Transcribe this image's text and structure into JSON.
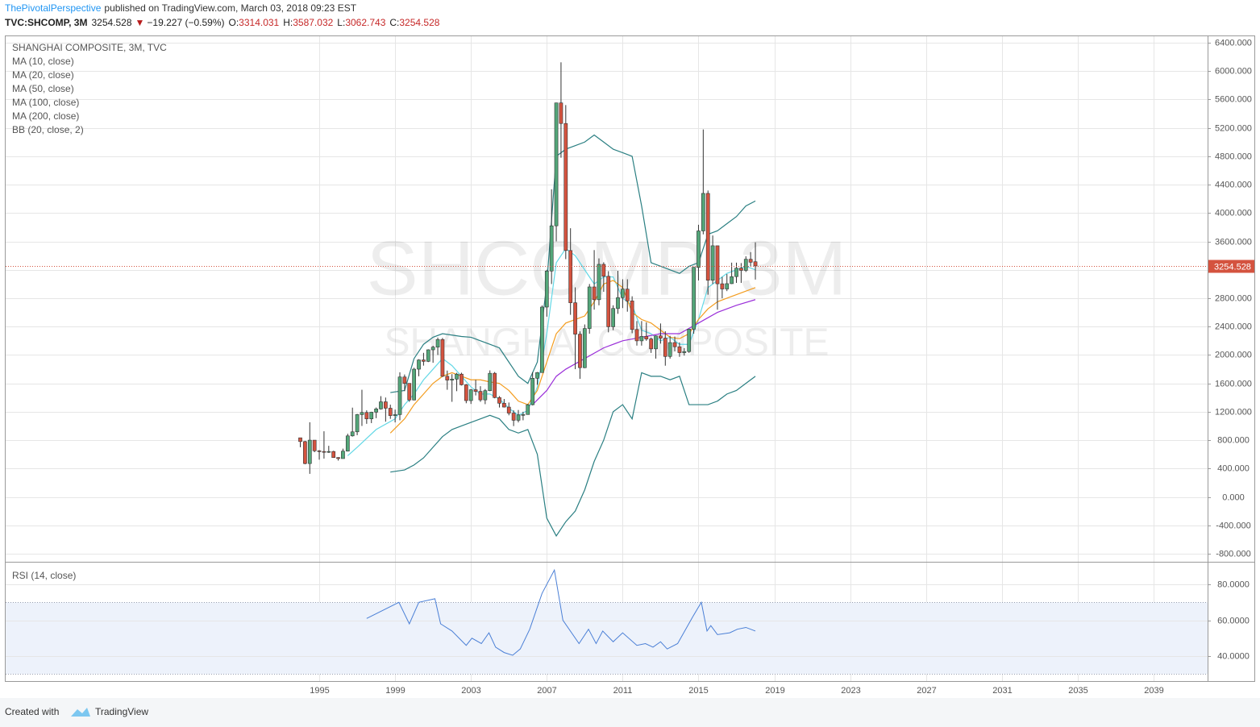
{
  "header": {
    "author": "ThePivotalPerspective",
    "published": "published on TradingView.com, March 03, 2018 09:23 EST",
    "symbol": "TVC:SHCOMP, 3M",
    "last": "3254.528",
    "arrow": "▼",
    "change": "−19.227 (−0.59%)",
    "ohlc": [
      {
        "label": "O:",
        "value": "3314.031"
      },
      {
        "label": "H:",
        "value": "3587.032"
      },
      {
        "label": "L:",
        "value": "3062.743"
      },
      {
        "label": "C:",
        "value": "3254.528"
      }
    ]
  },
  "footer": {
    "created": "Created with",
    "brand": "TradingView"
  },
  "chart_data": [
    {
      "type": "candlestick",
      "title": "SHANGHAI COMPOSITE, 3M, TVC",
      "watermark": "SHCOMP, 3M",
      "watermark_subtitle": "SHANGHAI COMPOSITE",
      "x": [
        1994,
        1994.25,
        1994.5,
        1994.75,
        1995,
        1995.25,
        1995.5,
        1995.75,
        1996,
        1996.25,
        1996.5,
        1996.75,
        1997,
        1997.25,
        1997.5,
        1997.75,
        1998,
        1998.25,
        1998.5,
        1998.75,
        1999,
        1999.25,
        1999.5,
        1999.75,
        2000,
        2000.25,
        2000.5,
        2000.75,
        2001,
        2001.25,
        2001.5,
        2001.75,
        2002,
        2002.25,
        2002.5,
        2002.75,
        2003,
        2003.25,
        2003.5,
        2003.75,
        2004,
        2004.25,
        2004.5,
        2004.75,
        2005,
        2005.25,
        2005.5,
        2005.75,
        2006,
        2006.25,
        2006.5,
        2006.75,
        2007,
        2007.25,
        2007.5,
        2007.75,
        2008,
        2008.25,
        2008.5,
        2008.75,
        2009,
        2009.25,
        2009.5,
        2009.75,
        2010,
        2010.25,
        2010.5,
        2010.75,
        2011,
        2011.25,
        2011.5,
        2011.75,
        2012,
        2012.25,
        2012.5,
        2012.75,
        2013,
        2013.25,
        2013.5,
        2013.75,
        2014,
        2014.25,
        2014.5,
        2014.75,
        2015,
        2015.25,
        2015.5,
        2015.75,
        2016,
        2016.25,
        2016.5,
        2016.75,
        2017,
        2017.25,
        2017.5,
        2017.75,
        2018
      ],
      "open": [
        833,
        780,
        470,
        800,
        650,
        640,
        630,
        640,
        555,
        540,
        645,
        860,
        917,
        1160,
        1190,
        1100,
        1194,
        1240,
        1340,
        1250,
        1146,
        1160,
        1690,
        1600,
        1366,
        1800,
        1930,
        1910,
        2073,
        2110,
        2218,
        1700,
        1646,
        1660,
        1730,
        1580,
        1357,
        1510,
        1487,
        1367,
        1497,
        1742,
        1400,
        1320,
        1266,
        1181,
        1080,
        1155,
        1161,
        1299,
        1672,
        1752,
        2675,
        3183,
        3820,
        5552,
        5262,
        3472,
        2736,
        2293,
        1821,
        2373,
        2959,
        2779,
        3277,
        3109,
        2398,
        2655,
        2808,
        2928,
        2762,
        2359,
        2199,
        2262,
        2225,
        2086,
        2269,
        2237,
        1979,
        2175,
        2116,
        2033,
        2048,
        2364,
        3235,
        3748,
        4277,
        3053,
        3539,
        3003,
        2930,
        3005,
        3104,
        3223,
        3192,
        3349,
        3314.031
      ],
      "high": [
        835,
        790,
        1052,
        800,
        660,
        925,
        720,
        650,
        560,
        680,
        890,
        1258,
        1170,
        1510,
        1220,
        1200,
        1260,
        1420,
        1400,
        1300,
        1230,
        1756,
        1725,
        1600,
        1820,
        1940,
        2030,
        2080,
        2130,
        2245,
        2240,
        1780,
        1730,
        1748,
        1750,
        1590,
        1520,
        1650,
        1560,
        1520,
        1783,
        1760,
        1420,
        1380,
        1330,
        1220,
        1225,
        1200,
        1310,
        1757,
        1760,
        2698,
        3200,
        4335,
        5555,
        6124,
        5522,
        3786,
        2953,
        2333,
        2430,
        3000,
        3478,
        3361,
        3306,
        3181,
        2700,
        3186,
        3067,
        3067,
        2827,
        2478,
        2478,
        2460,
        2243,
        2276,
        2444,
        2334,
        2270,
        2260,
        2177,
        2097,
        2367,
        3239,
        3835,
        5178,
        4317,
        3684,
        3539,
        3100,
        3140,
        3301,
        3301,
        3295,
        3391,
        3450,
        3587.032
      ],
      "low": [
        700,
        460,
        325,
        630,
        525,
        540,
        620,
        550,
        512,
        540,
        640,
        850,
        870,
        1000,
        1030,
        1040,
        1110,
        1230,
        1060,
        1100,
        1050,
        1080,
        1490,
        1340,
        1360,
        1700,
        1850,
        1900,
        1890,
        2000,
        1690,
        1510,
        1340,
        1490,
        1570,
        1320,
        1310,
        1430,
        1340,
        1307,
        1490,
        1390,
        1260,
        1260,
        1150,
        998,
        1050,
        1080,
        1160,
        1290,
        1580,
        1750,
        2540,
        3000,
        3600,
        4780,
        3350,
        2566,
        1800,
        1664,
        1814,
        2300,
        2639,
        2700,
        2890,
        2319,
        2350,
        2580,
        2661,
        2610,
        2307,
        2132,
        2132,
        2200,
        2029,
        1949,
        2160,
        1849,
        1949,
        2050,
        1974,
        1991,
        2030,
        2300,
        3050,
        3700,
        2850,
        3000,
        2638,
        2800,
        2900,
        3000,
        3016,
        3016,
        3170,
        3250,
        3062.743
      ],
      "close": [
        780,
        470,
        800,
        650,
        640,
        630,
        640,
        555,
        540,
        645,
        860,
        917,
        1160,
        1190,
        1100,
        1194,
        1240,
        1340,
        1250,
        1146,
        1160,
        1690,
        1600,
        1366,
        1800,
        1930,
        1910,
        2073,
        2110,
        2218,
        1700,
        1646,
        1660,
        1730,
        1580,
        1357,
        1510,
        1487,
        1367,
        1497,
        1742,
        1400,
        1320,
        1266,
        1181,
        1080,
        1155,
        1161,
        1299,
        1672,
        1752,
        2675,
        3183,
        3820,
        5552,
        5262,
        3472,
        2736,
        2293,
        1821,
        2373,
        2959,
        2779,
        3277,
        3109,
        2398,
        2655,
        2808,
        2928,
        2762,
        2359,
        2199,
        2262,
        2225,
        2086,
        2269,
        2237,
        1979,
        2175,
        2116,
        2033,
        2048,
        2364,
        3235,
        3748,
        4277,
        3053,
        3539,
        3003,
        2930,
        3005,
        3104,
        3223,
        3192,
        3349,
        3307,
        3254.528
      ],
      "up_color": "#53a679",
      "down_color": "#d4533f",
      "last_price_color": "#d4533f",
      "series": [
        {
          "name": "MA (10, close)",
          "color": "#63d8e6",
          "x": [
            1996.5,
            1997,
            1998,
            1999,
            1999.5,
            2000,
            2000.5,
            2001,
            2001.5,
            2002,
            2002.5,
            2003,
            2003.5,
            2004,
            2004.5,
            2005,
            2005.5,
            2006,
            2006.5,
            2007,
            2007.5,
            2008,
            2008.5,
            2009,
            2009.5,
            2010,
            2010.5,
            2011,
            2011.5,
            2012,
            2012.5,
            2013,
            2013.5,
            2014,
            2014.5,
            2015,
            2015.5,
            2016,
            2016.5,
            2017,
            2017.5,
            2018
          ],
          "values": [
            580,
            700,
            950,
            1100,
            1300,
            1450,
            1650,
            1800,
            1950,
            1850,
            1700,
            1550,
            1450,
            1450,
            1380,
            1250,
            1150,
            1220,
            1550,
            2300,
            3300,
            3500,
            3400,
            3200,
            3000,
            3100,
            3100,
            2800,
            2700,
            2350,
            2300,
            2200,
            2250,
            2150,
            2150,
            2500,
            2950,
            3050,
            3150,
            3200,
            3250,
            3200
          ]
        },
        {
          "name": "MA (20, close)",
          "color": "#f39c1e",
          "x": [
            1998.75,
            1999.5,
            2000,
            2000.5,
            2001,
            2001.5,
            2002,
            2002.5,
            2003,
            2003.5,
            2004,
            2004.5,
            2005,
            2005.5,
            2006,
            2006.5,
            2007,
            2007.5,
            2008,
            2008.5,
            2009,
            2009.5,
            2010,
            2010.5,
            2011,
            2011.5,
            2012,
            2012.5,
            2013,
            2013.5,
            2014,
            2014.5,
            2015,
            2015.5,
            2016,
            2016.5,
            2017,
            2017.5,
            2018
          ],
          "values": [
            900,
            1100,
            1300,
            1450,
            1600,
            1700,
            1750,
            1700,
            1650,
            1650,
            1620,
            1600,
            1500,
            1350,
            1300,
            1500,
            1900,
            2300,
            2450,
            2500,
            2550,
            2750,
            3000,
            3050,
            2950,
            2600,
            2500,
            2450,
            2350,
            2250,
            2230,
            2300,
            2500,
            2650,
            2750,
            2800,
            2850,
            2900,
            2950
          ]
        },
        {
          "name": "MA (50, close)",
          "color": "#9b30d9",
          "x": [
            2006.25,
            2007,
            2007.5,
            2008,
            2009,
            2010,
            2011,
            2012,
            2013,
            2014,
            2015,
            2016,
            2017,
            2018
          ],
          "values": [
            1300,
            1500,
            1700,
            1800,
            1950,
            2100,
            2200,
            2250,
            2300,
            2300,
            2450,
            2600,
            2700,
            2780
          ]
        },
        {
          "name": "MA (100, close)",
          "x": [],
          "values": []
        },
        {
          "name": "MA (200, close)",
          "x": [],
          "values": []
        },
        {
          "name": "BB (20, close, 2)",
          "color": "#2a7f82",
          "x": [
            1998.75,
            1999.5,
            2000,
            2000.5,
            2001,
            2001.5,
            2002,
            2002.5,
            2003,
            2003.5,
            2004,
            2004.5,
            2005,
            2005.5,
            2006,
            2006.5,
            2007,
            2007.5,
            2008,
            2008.5,
            2009,
            2009.5,
            2010,
            2010.5,
            2011,
            2011.5,
            2012,
            2012.5,
            2013,
            2013.5,
            2014,
            2014.5,
            2015,
            2015.5,
            2016,
            2016.5,
            2017,
            2017.5,
            2018
          ],
          "upper": [
            1470,
            1500,
            1950,
            2150,
            2250,
            2300,
            2280,
            2260,
            2250,
            2200,
            2150,
            2100,
            1900,
            1700,
            1600,
            1900,
            3000,
            4800,
            4900,
            4950,
            5000,
            5100,
            5000,
            4900,
            4850,
            4800,
            4100,
            3300,
            3250,
            3200,
            3150,
            3250,
            3300,
            3700,
            3750,
            3850,
            3950,
            4100,
            4170
          ],
          "lower": [
            350,
            380,
            450,
            550,
            700,
            850,
            950,
            1000,
            1050,
            1100,
            1150,
            1100,
            950,
            900,
            950,
            600,
            -300,
            -550,
            -350,
            -200,
            100,
            500,
            800,
            1200,
            1300,
            1100,
            1750,
            1700,
            1700,
            1650,
            1700,
            1300,
            1300,
            1300,
            1350,
            1450,
            1500,
            1600,
            1700
          ]
        }
      ],
      "xlim": [
        1978.46,
        2041.85
      ],
      "xticks": [
        1995,
        1999,
        2003,
        2007,
        2011,
        2015,
        2019,
        2023,
        2027,
        2031,
        2035,
        2039
      ],
      "ylim": [
        -914,
        6491
      ],
      "yticks": [
        {
          "value": -800,
          "label": "-800.000"
        },
        {
          "value": -400,
          "label": "-400.000"
        },
        {
          "value": 0,
          "label": "0.000"
        },
        {
          "value": 400,
          "label": "400.000"
        },
        {
          "value": 800,
          "label": "800.000"
        },
        {
          "value": 1200,
          "label": "1200.000"
        },
        {
          "value": 1600,
          "label": "1600.000"
        },
        {
          "value": 2000,
          "label": "2000.000"
        },
        {
          "value": 2400,
          "label": "2400.000"
        },
        {
          "value": 2800,
          "label": "2800.000"
        },
        {
          "value": 3200,
          "label": "3200.000"
        },
        {
          "value": 3600,
          "label": "3600.000"
        },
        {
          "value": 4000,
          "label": "4000.000"
        },
        {
          "value": 4400,
          "label": "4400.000"
        },
        {
          "value": 4800,
          "label": "4800.000"
        },
        {
          "value": 5200,
          "label": "5200.000"
        },
        {
          "value": 5600,
          "label": "5600.000"
        },
        {
          "value": 6000,
          "label": "6000.000"
        },
        {
          "value": 6400,
          "label": "6400.000"
        }
      ],
      "grid": true
    },
    {
      "type": "line",
      "title": "RSI (14, close)",
      "color": "#4a7fd6",
      "band": [
        30,
        70
      ],
      "band_color": "#edf2fb",
      "x": [
        1997.5,
        1999.2,
        1999.75,
        2000.25,
        2001.1,
        2001.4,
        2002,
        2002.75,
        2003.05,
        2003.55,
        2003.95,
        2004.3,
        2004.75,
        2005.2,
        2005.6,
        2006.1,
        2006.75,
        2007.4,
        2007.85,
        2008.7,
        2009.2,
        2009.6,
        2009.95,
        2010.5,
        2011,
        2011.75,
        2012.2,
        2012.6,
        2013,
        2013.35,
        2013.9,
        2014.7,
        2015.15,
        2015.45,
        2015.65,
        2016,
        2016.65,
        2017.05,
        2017.5,
        2018
      ],
      "values": [
        61,
        70,
        58,
        70,
        72,
        58,
        54,
        46,
        50,
        47,
        53,
        45,
        42,
        40.5,
        44,
        55,
        75,
        88,
        60,
        47,
        55,
        47,
        54,
        48,
        53,
        46,
        47,
        45,
        48,
        44,
        47,
        62,
        70,
        54,
        57,
        52,
        53,
        55,
        56,
        54
      ],
      "xlim": [
        1978.46,
        2041.85
      ],
      "ylim": [
        26.1,
        92.6
      ],
      "yticks": [
        {
          "value": 40,
          "label": "40.0000"
        },
        {
          "value": 60,
          "label": "60.0000"
        },
        {
          "value": 80,
          "label": "80.0000"
        }
      ],
      "grid": true
    }
  ]
}
